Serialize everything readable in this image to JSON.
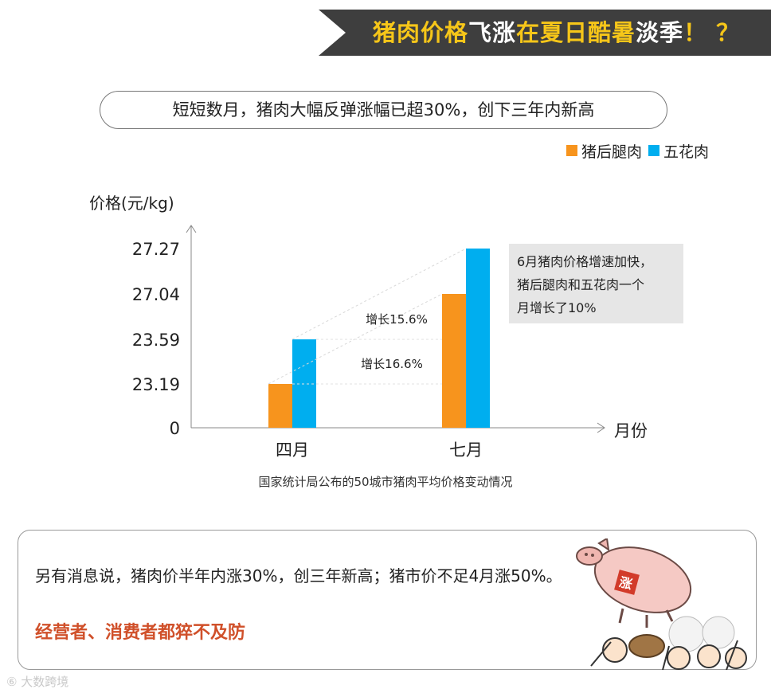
{
  "banner": {
    "title_part1": "猪肉价格",
    "title_part2": "飞涨",
    "title_part3": "在夏日酷暑",
    "title_part4": "淡季",
    "title_part5": "！ ？"
  },
  "subtitle": "短短数月，猪肉大幅反弹涨幅已超30%，创下三年内新高",
  "chart_data": {
    "type": "bar",
    "categories": [
      "四月",
      "七月"
    ],
    "series": [
      {
        "name": "猪后腿肉",
        "color": "#f7941d",
        "values": [
          23.19,
          27.04
        ]
      },
      {
        "name": "五花肉",
        "color": "#00aeef",
        "values": [
          23.59,
          27.27
        ]
      }
    ],
    "y_ticks": [
      "27.27",
      "27.04",
      "23.59",
      "23.19",
      "0"
    ],
    "ylabel": "价格(元/kg)",
    "xlabel": "月份",
    "annotations": [
      "增长15.6%",
      "增长16.6%"
    ],
    "note": [
      "6月猪肉价格增速加快，",
      "猪后腿肉和五花肉一个",
      "月增长了10%"
    ],
    "source": "国家统计局公布的50城市猪肉平均价格变动情况"
  },
  "bottom": {
    "text": "另有消息说，猪肉价半年内涨30%，创三年新高；猪市价不足4月涨50%。",
    "highlight": "经营者、消费者都猝不及防",
    "cartoon_label": "涨"
  },
  "watermark": "大数跨境",
  "colors": {
    "banner_bg": "#3e3e3e",
    "banner_accent": "#f6c619",
    "hind_leg": "#f7941d",
    "pork_belly": "#00aeef",
    "highlight": "#d0502a"
  }
}
